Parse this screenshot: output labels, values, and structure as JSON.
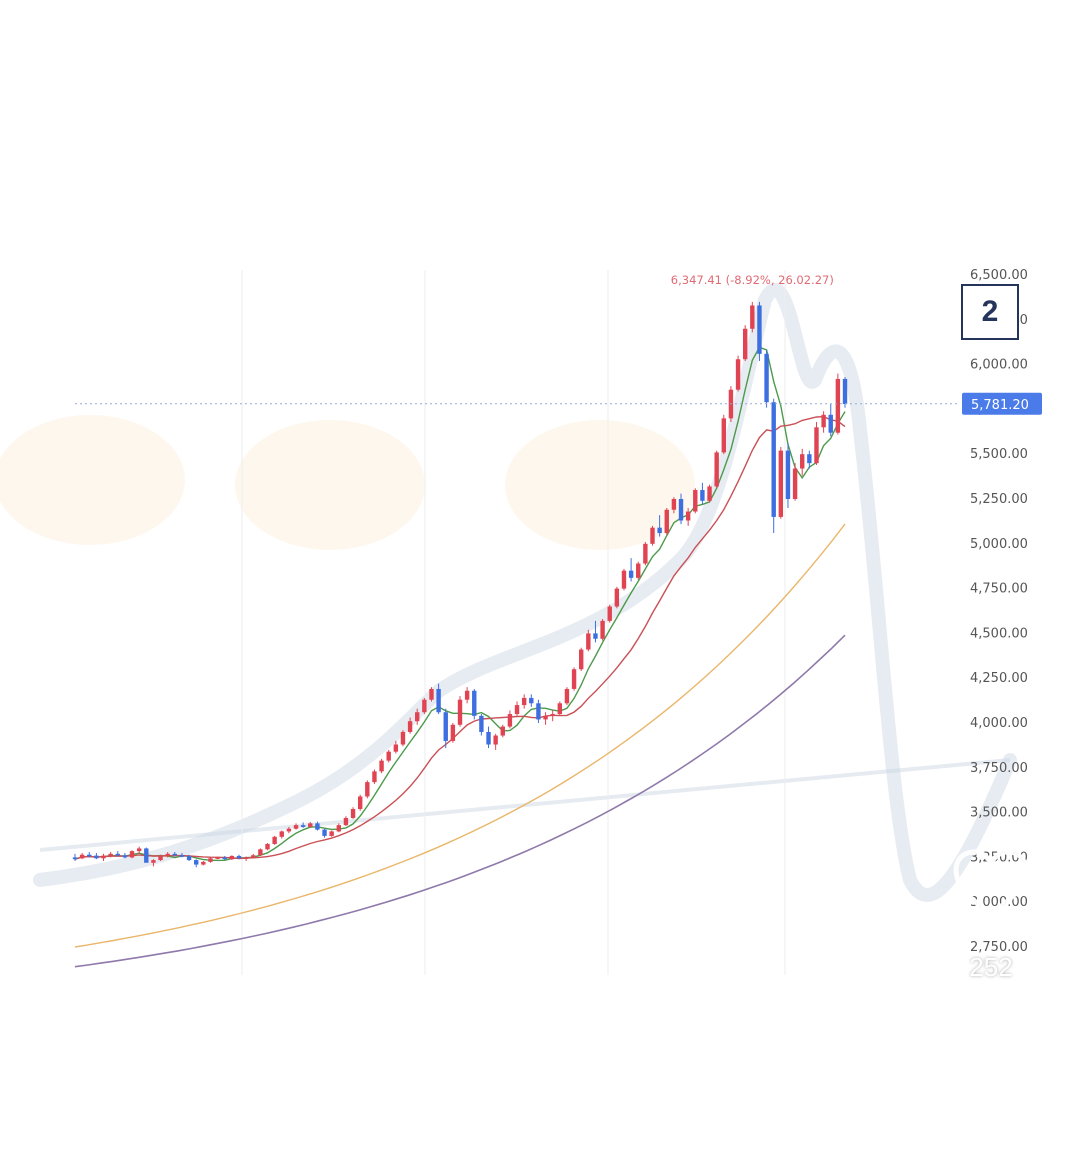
{
  "post": {
    "slide_badge": "2",
    "like_count": "252"
  },
  "icons": {
    "like": "heart-outline-icon",
    "comment": "speech-bubble-icon"
  },
  "colors": {
    "up_candle": "#e04452",
    "down_candle": "#3d6fe0",
    "ma_short": "#4c9a4c",
    "ma_mid": "#c95055",
    "ma_long": "#e9b66a",
    "ma_longest": "#8e79aa",
    "last_price_tag": "#4a7be8",
    "overlay_curve": "#c9d5e2"
  },
  "chart_data": {
    "type": "candlestick",
    "y_axis_ticks": [
      "6,500.00",
      "6,250.00",
      "6,000.00",
      "5,750.00",
      "5,500.00",
      "5,250.00",
      "5,000.00",
      "4,750.00",
      "4,500.00",
      "4,250.00",
      "4,000.00",
      "3,750.00",
      "3,500.00",
      "3,250.00",
      "3,000.00",
      "2,750.00"
    ],
    "ylim": [
      2750,
      6500
    ],
    "last_price": "5,781.20",
    "peak_annotation": "6,347.41 (-8.92%, 26.02.27)",
    "ohlc": [
      [
        3250,
        3270,
        3230,
        3240
      ],
      [
        3245,
        3275,
        3240,
        3265
      ],
      [
        3265,
        3280,
        3250,
        3260
      ],
      [
        3260,
        3275,
        3240,
        3245
      ],
      [
        3245,
        3270,
        3230,
        3260
      ],
      [
        3260,
        3280,
        3250,
        3270
      ],
      [
        3270,
        3285,
        3255,
        3262
      ],
      [
        3262,
        3275,
        3245,
        3250
      ],
      [
        3250,
        3290,
        3245,
        3285
      ],
      [
        3285,
        3310,
        3270,
        3300
      ],
      [
        3300,
        3305,
        3230,
        3220
      ],
      [
        3220,
        3240,
        3200,
        3235
      ],
      [
        3235,
        3265,
        3230,
        3260
      ],
      [
        3260,
        3280,
        3250,
        3270
      ],
      [
        3270,
        3280,
        3255,
        3262
      ],
      [
        3262,
        3275,
        3250,
        3258
      ],
      [
        3258,
        3265,
        3230,
        3235
      ],
      [
        3235,
        3240,
        3195,
        3210
      ],
      [
        3210,
        3230,
        3205,
        3225
      ],
      [
        3225,
        3250,
        3220,
        3245
      ],
      [
        3245,
        3255,
        3240,
        3250
      ],
      [
        3250,
        3258,
        3235,
        3240
      ],
      [
        3240,
        3262,
        3235,
        3258
      ],
      [
        3258,
        3265,
        3240,
        3245
      ],
      [
        3245,
        3255,
        3230,
        3250
      ],
      [
        3250,
        3270,
        3245,
        3262
      ],
      [
        3262,
        3300,
        3258,
        3295
      ],
      [
        3295,
        3330,
        3290,
        3325
      ],
      [
        3325,
        3370,
        3320,
        3365
      ],
      [
        3365,
        3400,
        3355,
        3395
      ],
      [
        3395,
        3420,
        3385,
        3410
      ],
      [
        3410,
        3440,
        3405,
        3430
      ],
      [
        3430,
        3445,
        3415,
        3420
      ],
      [
        3420,
        3448,
        3415,
        3440
      ],
      [
        3440,
        3450,
        3400,
        3405
      ],
      [
        3405,
        3410,
        3360,
        3370
      ],
      [
        3370,
        3400,
        3365,
        3395
      ],
      [
        3395,
        3440,
        3390,
        3430
      ],
      [
        3430,
        3480,
        3425,
        3470
      ],
      [
        3470,
        3530,
        3465,
        3520
      ],
      [
        3520,
        3600,
        3510,
        3590
      ],
      [
        3590,
        3680,
        3580,
        3670
      ],
      [
        3670,
        3740,
        3660,
        3730
      ],
      [
        3730,
        3800,
        3720,
        3790
      ],
      [
        3790,
        3850,
        3780,
        3840
      ],
      [
        3840,
        3900,
        3830,
        3880
      ],
      [
        3880,
        3960,
        3870,
        3950
      ],
      [
        3950,
        4030,
        3940,
        4010
      ],
      [
        4010,
        4080,
        3990,
        4060
      ],
      [
        4060,
        4140,
        4050,
        4130
      ],
      [
        4130,
        4200,
        4120,
        4190
      ],
      [
        4190,
        4220,
        4050,
        4060
      ],
      [
        4060,
        4080,
        3860,
        3900
      ],
      [
        3900,
        4000,
        3890,
        3990
      ],
      [
        3990,
        4150,
        3980,
        4130
      ],
      [
        4130,
        4200,
        4110,
        4180
      ],
      [
        4180,
        4190,
        4020,
        4040
      ],
      [
        4040,
        4050,
        3930,
        3950
      ],
      [
        3950,
        3980,
        3860,
        3880
      ],
      [
        3880,
        3940,
        3850,
        3930
      ],
      [
        3930,
        3990,
        3920,
        3980
      ],
      [
        3980,
        4070,
        3970,
        4050
      ],
      [
        4050,
        4120,
        4040,
        4100
      ],
      [
        4100,
        4160,
        4080,
        4140
      ],
      [
        4140,
        4160,
        4090,
        4110
      ],
      [
        4110,
        4130,
        4000,
        4020
      ],
      [
        4020,
        4060,
        3990,
        4040
      ],
      [
        4040,
        4070,
        4010,
        4050
      ],
      [
        4050,
        4120,
        4040,
        4110
      ],
      [
        4110,
        4200,
        4100,
        4190
      ],
      [
        4190,
        4310,
        4180,
        4300
      ],
      [
        4300,
        4420,
        4290,
        4410
      ],
      [
        4410,
        4520,
        4400,
        4500
      ],
      [
        4500,
        4570,
        4450,
        4470
      ],
      [
        4470,
        4580,
        4460,
        4570
      ],
      [
        4570,
        4660,
        4560,
        4650
      ],
      [
        4650,
        4760,
        4640,
        4750
      ],
      [
        4750,
        4860,
        4740,
        4850
      ],
      [
        4850,
        4920,
        4790,
        4810
      ],
      [
        4810,
        4900,
        4800,
        4890
      ],
      [
        4890,
        5010,
        4880,
        5000
      ],
      [
        5000,
        5100,
        4990,
        5090
      ],
      [
        5090,
        5160,
        5040,
        5060
      ],
      [
        5060,
        5200,
        5050,
        5190
      ],
      [
        5190,
        5260,
        5170,
        5250
      ],
      [
        5250,
        5280,
        5110,
        5130
      ],
      [
        5130,
        5200,
        5100,
        5180
      ],
      [
        5180,
        5310,
        5170,
        5300
      ],
      [
        5300,
        5340,
        5220,
        5240
      ],
      [
        5240,
        5330,
        5230,
        5320
      ],
      [
        5320,
        5520,
        5310,
        5510
      ],
      [
        5510,
        5720,
        5500,
        5700
      ],
      [
        5700,
        5880,
        5680,
        5860
      ],
      [
        5860,
        6050,
        5850,
        6030
      ],
      [
        6030,
        6220,
        6020,
        6200
      ],
      [
        6200,
        6350,
        6180,
        6330
      ],
      [
        6330,
        6350,
        6020,
        6060
      ],
      [
        6060,
        6080,
        5760,
        5790
      ],
      [
        5790,
        5810,
        5060,
        5150
      ],
      [
        5150,
        5540,
        5140,
        5520
      ],
      [
        5520,
        5560,
        5200,
        5250
      ],
      [
        5250,
        5450,
        5240,
        5420
      ],
      [
        5420,
        5530,
        5380,
        5500
      ],
      [
        5500,
        5520,
        5420,
        5450
      ],
      [
        5450,
        5680,
        5440,
        5650
      ],
      [
        5650,
        5740,
        5620,
        5720
      ],
      [
        5720,
        5780,
        5600,
        5620
      ],
      [
        5620,
        5950,
        5610,
        5920
      ],
      [
        5920,
        5930,
        5760,
        5780
      ]
    ]
  }
}
